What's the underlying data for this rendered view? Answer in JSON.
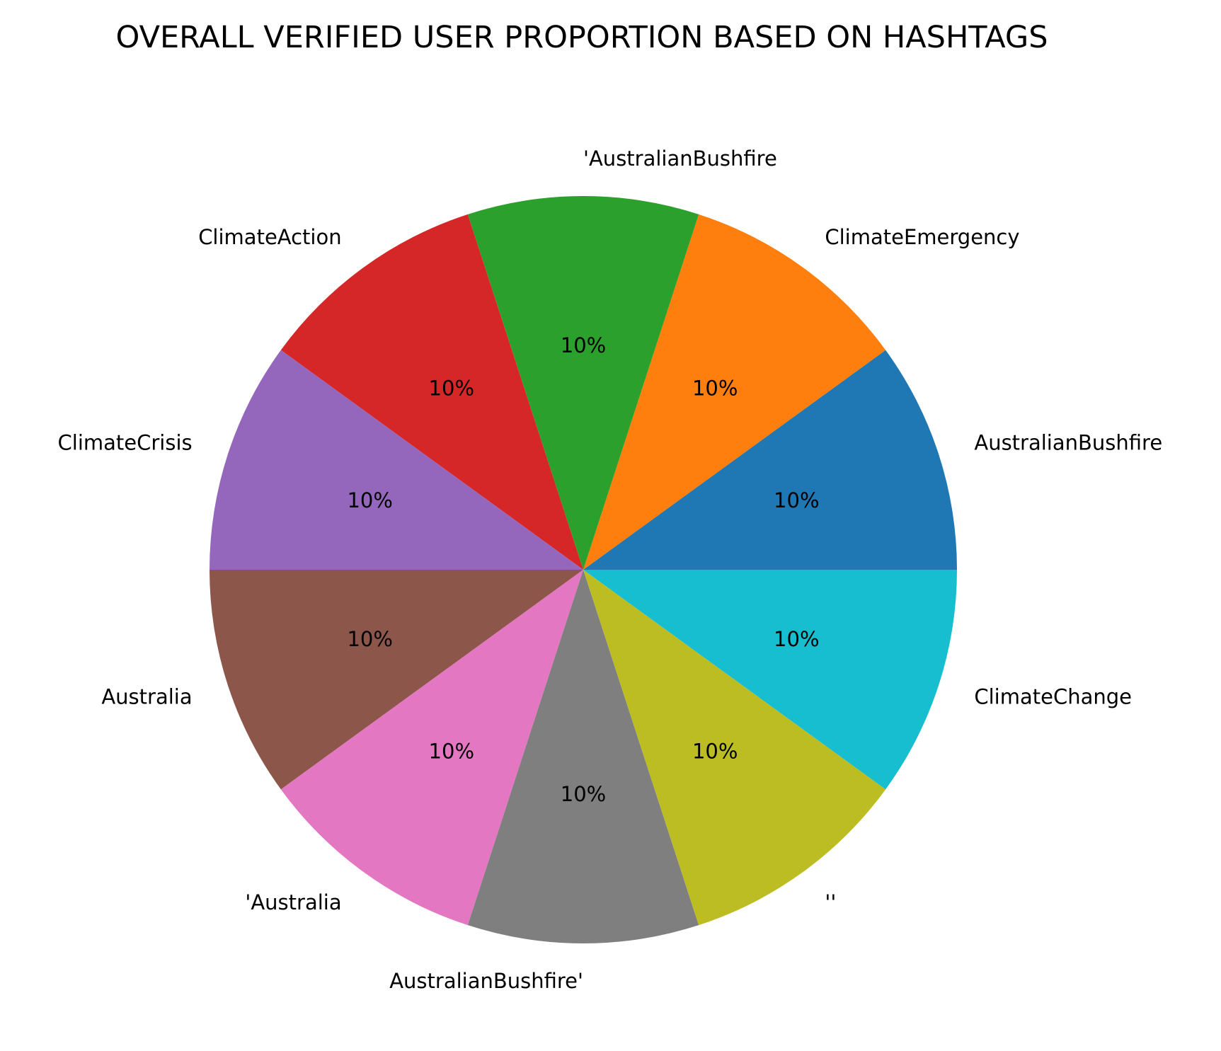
{
  "chart_data": {
    "type": "pie",
    "title": "OVERALL VERIFIED USER PROPORTION BASED ON HASHTAGS",
    "start_angle_deg": 0,
    "direction": "counterclockwise",
    "slices": [
      {
        "label": "AustralianBushfire",
        "value": 10,
        "pct_label": "10%",
        "color": "#1f77b4"
      },
      {
        "label": "ClimateEmergency",
        "value": 10,
        "pct_label": "10%",
        "color": "#ff7f0e"
      },
      {
        "label": "'AustralianBushfire",
        "value": 10,
        "pct_label": "10%",
        "color": "#2ca02c"
      },
      {
        "label": "ClimateAction",
        "value": 10,
        "pct_label": "10%",
        "color": "#d62728"
      },
      {
        "label": "ClimateCrisis",
        "value": 10,
        "pct_label": "10%",
        "color": "#9467bd"
      },
      {
        "label": "Australia",
        "value": 10,
        "pct_label": "10%",
        "color": "#8c564b"
      },
      {
        "label": "'Australia",
        "value": 10,
        "pct_label": "10%",
        "color": "#e377c2"
      },
      {
        "label": "AustralianBushfire'",
        "value": 10,
        "pct_label": "10%",
        "color": "#7f7f7f"
      },
      {
        "label": "''",
        "value": 10,
        "pct_label": "10%",
        "color": "#bcbd22"
      },
      {
        "label": "ClimateChange",
        "value": 10,
        "pct_label": "10%",
        "color": "#17becf"
      }
    ]
  }
}
